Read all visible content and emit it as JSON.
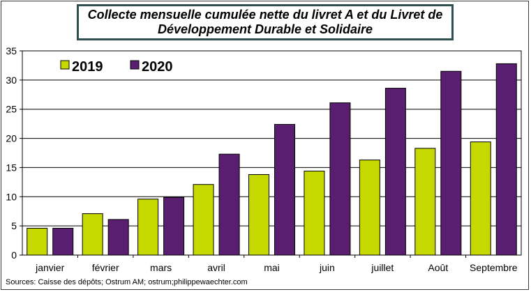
{
  "chart_data": {
    "type": "bar",
    "title_line1": "Collecte mensuelle cumulée nette du livret A et du Livret de",
    "title_line2": "Développement Durable et Solidaire",
    "categories": [
      "janvier",
      "février",
      "mars",
      "avril",
      "mai",
      "juin",
      "juillet",
      "Août",
      "Septembre"
    ],
    "series": [
      {
        "name": "2019",
        "color": "#c5d800",
        "values": [
          4.6,
          7.1,
          9.6,
          12.1,
          13.8,
          14.4,
          16.3,
          18.3,
          19.4
        ]
      },
      {
        "name": "2020",
        "color": "#5a1e70",
        "values": [
          4.6,
          6.1,
          9.9,
          17.3,
          22.4,
          26.1,
          28.6,
          31.5,
          32.8
        ]
      }
    ],
    "ylim": [
      0,
      35
    ],
    "yticks": [
      "0",
      "5",
      "10",
      "15",
      "20",
      "25",
      "30",
      "35"
    ],
    "grid": true,
    "legend_position": "top-left"
  },
  "source": "Sources: Caisse des dépôts; Ostrum AM; ostrum;philippewaechter.com"
}
